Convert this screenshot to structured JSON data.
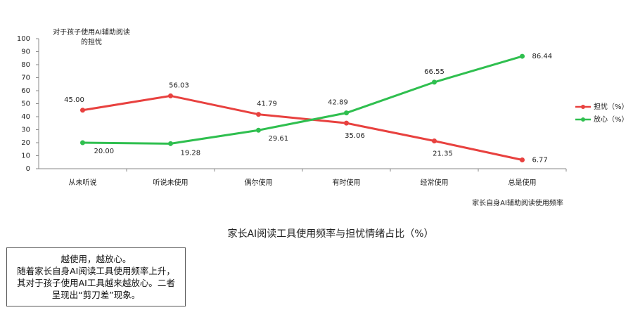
{
  "chart_data": {
    "type": "line",
    "title": "家长AI阅读工具使用频率与担忧情绪占比（%）",
    "y_label": [
      "对于孩子使用AI辅助阅读",
      "的担忧"
    ],
    "x_label": "家长自身AI辅助阅读使用频率",
    "categories": [
      "从未听说",
      "听说未使用",
      "偶尔使用",
      "有时使用",
      "经常使用",
      "总是使用"
    ],
    "series": [
      {
        "name": "担忧（%）",
        "color": "#e8413f",
        "values": [
          45,
          56.03,
          41.79,
          35.06,
          21.35,
          6.77
        ],
        "value_labels": [
          "45.00",
          "56.03",
          "41.79",
          "35.06",
          "21.35",
          "6.77"
        ]
      },
      {
        "name": "放心（%）",
        "color": "#2fbf4f",
        "values": [
          20,
          19.28,
          29.61,
          42.89,
          66.55,
          86.44
        ],
        "value_labels": [
          "20.00",
          "19.28",
          "29.61",
          "42.89",
          "66.55",
          "86.44"
        ]
      }
    ],
    "ylim": [
      0,
      100
    ],
    "yticks": [
      0,
      10,
      20,
      30,
      40,
      50,
      60,
      70,
      80,
      90,
      100
    ],
    "grid": false,
    "legend": "right"
  },
  "note": {
    "lines": [
      "越使用，越放心。",
      "随着家长自身AI阅读工具使用频率上升，",
      "其对于孩子使用AI工具越来越放心。二者",
      "呈现出“剪刀差”现象。"
    ]
  }
}
